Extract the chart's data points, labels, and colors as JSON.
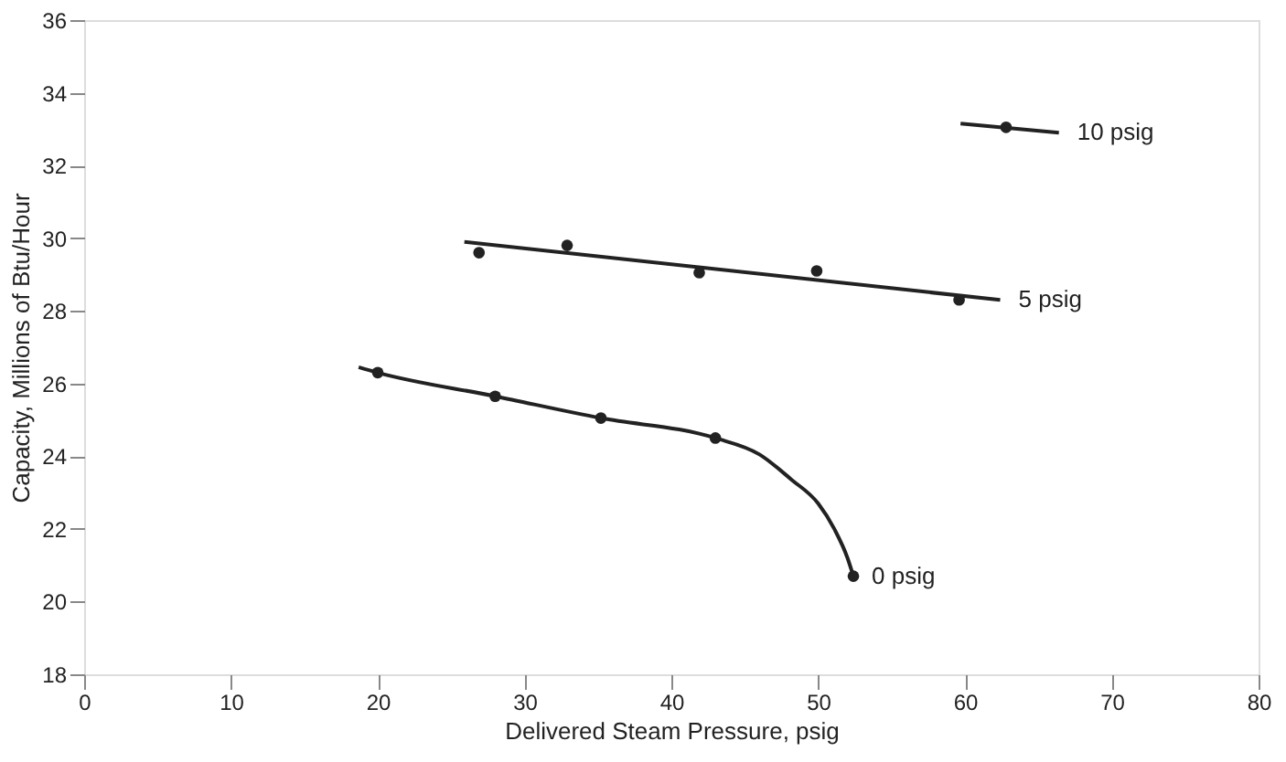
{
  "chart_data": {
    "type": "scatter",
    "xlabel": "Delivered Steam Pressure, psig",
    "ylabel": "Capacity, Millions of Btu/Hour",
    "xlim": [
      0,
      80
    ],
    "xticks": [
      0,
      10,
      20,
      30,
      40,
      50,
      60,
      70,
      80
    ],
    "ylim": [
      18,
      36
    ],
    "yticks": [
      18,
      20,
      22,
      24,
      26,
      28,
      30,
      32,
      34,
      36
    ],
    "grid": false,
    "series": [
      {
        "name": "0 psig",
        "type": "line",
        "color": "#222222",
        "marker": "none",
        "x": [
          18.7,
          20,
          28,
          35.2,
          43,
          46,
          48.2,
          50,
          51.1,
          52,
          52.4
        ],
        "values": [
          26.45,
          26.3,
          25.65,
          25.05,
          24.5,
          24.05,
          23.35,
          22.7,
          22.0,
          21.2,
          20.7
        ]
      },
      {
        "name": "5 psig",
        "type": "line",
        "color": "#222222",
        "marker": "none",
        "x": [
          25.9,
          62.4
        ],
        "values": [
          29.9,
          28.3
        ]
      },
      {
        "name": "10 psig",
        "type": "line",
        "color": "#222222",
        "marker": "none",
        "x": [
          59.7,
          66.4
        ],
        "values": [
          33.15,
          32.9
        ]
      },
      {
        "color": "#222222",
        "marker": "circle",
        "x": [
          20,
          28,
          35.2,
          43,
          52.4
        ],
        "values": [
          26.3,
          25.65,
          25.05,
          24.5,
          20.7
        ]
      },
      {
        "color": "#222222",
        "marker": "circle",
        "x": [
          26.9,
          32.9,
          41.9,
          49.9,
          59.6
        ],
        "values": [
          29.6,
          29.8,
          29.05,
          29.1,
          28.3
        ]
      },
      {
        "color": "#222222",
        "marker": "circle",
        "x": [
          62.8
        ],
        "values": [
          33.05
        ]
      }
    ]
  }
}
